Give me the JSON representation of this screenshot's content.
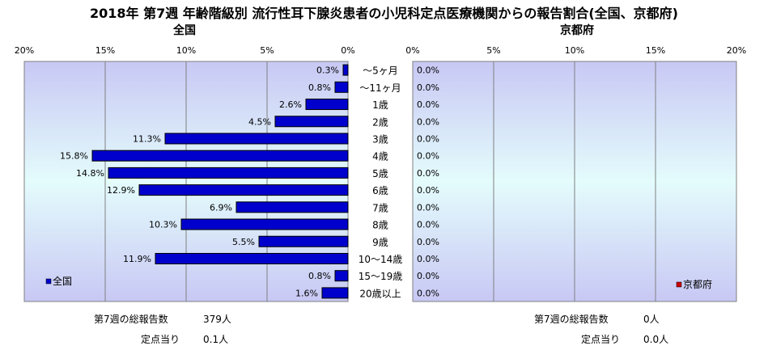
{
  "title": "2018年 第7週 年齢階級別 流行性耳下腺炎患者の小児科定点医療機関からの報告割合(全国、京都府)",
  "chart_data": [
    {
      "type": "bar",
      "orientation": "horizontal",
      "subtitle": "全国",
      "categories": [
        "～5ヶ月",
        "～11ヶ月",
        "1歳",
        "2歳",
        "3歳",
        "4歳",
        "5歳",
        "6歳",
        "7歳",
        "8歳",
        "9歳",
        "10～14歳",
        "15～19歳",
        "20歳以上"
      ],
      "series": [
        {
          "name": "全国",
          "values": [
            0.3,
            0.8,
            2.6,
            4.5,
            11.3,
            15.8,
            14.8,
            12.9,
            6.9,
            10.3,
            5.5,
            11.9,
            0.8,
            1.6
          ],
          "labels": [
            "0.3%",
            "0.8%",
            "2.6%",
            "4.5%",
            "11.3%",
            "15.8%",
            "14.8%",
            "12.9%",
            "6.9%",
            "10.3%",
            "5.5%",
            "11.9%",
            "0.8%",
            "1.6%"
          ],
          "color": "#0000cc"
        }
      ],
      "xlim": [
        0,
        20
      ],
      "x_direction": "reversed",
      "ticks": [
        "20%",
        "15%",
        "10%",
        "5%",
        "0%"
      ],
      "legend_position": "bottom-left",
      "grid": true
    },
    {
      "type": "bar",
      "orientation": "horizontal",
      "subtitle": "京都府",
      "categories": [
        "～5ヶ月",
        "～11ヶ月",
        "1歳",
        "2歳",
        "3歳",
        "4歳",
        "5歳",
        "6歳",
        "7歳",
        "8歳",
        "9歳",
        "10～14歳",
        "15～19歳",
        "20歳以上"
      ],
      "series": [
        {
          "name": "京都府",
          "values": [
            0,
            0,
            0,
            0,
            0,
            0,
            0,
            0,
            0,
            0,
            0,
            0,
            0,
            0
          ],
          "labels": [
            "0.0%",
            "0.0%",
            "0.0%",
            "0.0%",
            "0.0%",
            "0.0%",
            "0.0%",
            "0.0%",
            "0.0%",
            "0.0%",
            "0.0%",
            "0.0%",
            "0.0%",
            "0.0%"
          ],
          "color": "#cc0000"
        }
      ],
      "xlim": [
        0,
        20
      ],
      "ticks": [
        "0%",
        "5%",
        "10%",
        "15%",
        "20%"
      ],
      "legend_position": "bottom-right",
      "grid": true
    }
  ],
  "stats": {
    "national": {
      "total_label": "第7週の総報告数",
      "total_value": "379人",
      "per_label": "定点当り",
      "per_value": "0.1人"
    },
    "kyoto": {
      "total_label": "第7週の総報告数",
      "total_value": "0人",
      "per_label": "定点当り",
      "per_value": "0.0人"
    }
  }
}
